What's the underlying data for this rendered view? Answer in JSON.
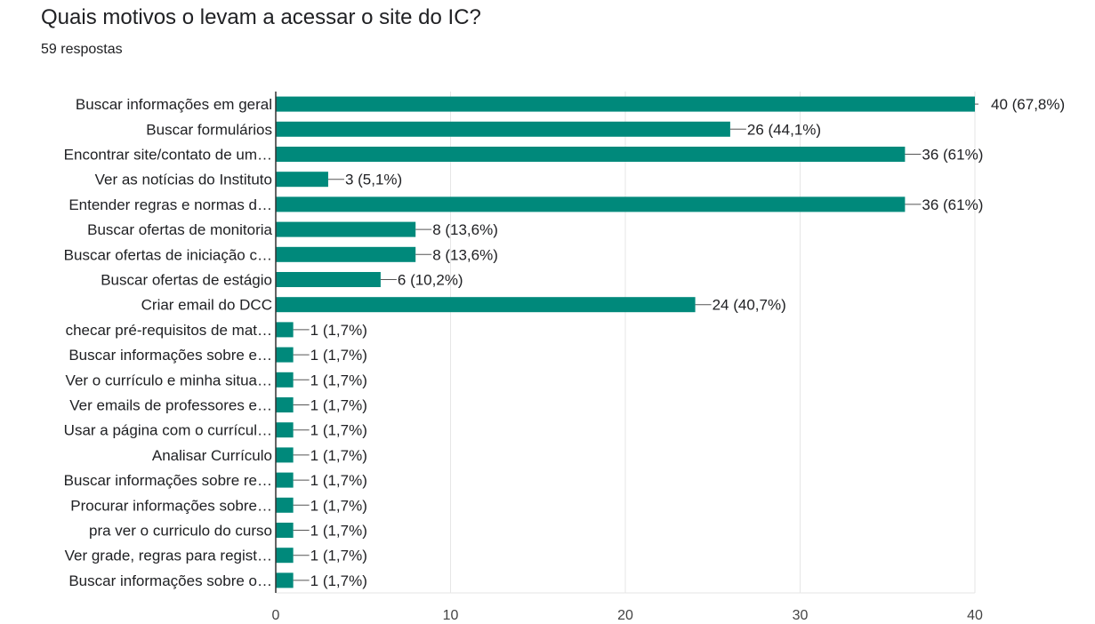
{
  "header": {
    "title": "Quais motivos o levam a acessar o site do IC?",
    "subtitle": "59 respostas"
  },
  "colors": {
    "bar": "#00897b",
    "grid": "#e6e6e6",
    "axis": "#333333",
    "leader": "#555555"
  },
  "chart_data": {
    "type": "bar",
    "orientation": "horizontal",
    "title": "Quais motivos o levam a acessar o site do IC?",
    "subtitle": "59 respostas",
    "xlim": [
      0,
      40
    ],
    "xticks": [
      0,
      10,
      20,
      30,
      40
    ],
    "grid": true,
    "categories": [
      "Buscar informações em geral",
      "Buscar formulários",
      "Encontrar site/contato de um…",
      "Ver as notícias do Instituto",
      "Entender regras e normas d…",
      "Buscar ofertas de monitoria",
      "Buscar ofertas de iniciação c…",
      "Buscar ofertas de estágio",
      "Criar email do DCC",
      "checar pré-requisitos de mat…",
      "Buscar informações sobre e…",
      "Ver o currículo e minha situa…",
      "Ver emails de professores e…",
      "Usar a página com o currícul…",
      "Analisar Currículo",
      "Buscar informações sobre re…",
      "Procurar informações sobre…",
      "pra ver o curriculo do curso",
      "Ver grade, regras para regist…",
      "Buscar informações sobre o…"
    ],
    "values": [
      40,
      26,
      36,
      3,
      36,
      8,
      8,
      6,
      24,
      1,
      1,
      1,
      1,
      1,
      1,
      1,
      1,
      1,
      1,
      1
    ],
    "data_labels": [
      "40 (67,8%)",
      "26 (44,1%)",
      "36 (61%)",
      "3 (5,1%)",
      "36 (61%)",
      "8 (13,6%)",
      "8 (13,6%)",
      "6 (10,2%)",
      "24 (40,7%)",
      "1 (1,7%)",
      "1 (1,7%)",
      "1 (1,7%)",
      "1 (1,7%)",
      "1 (1,7%)",
      "1 (1,7%)",
      "1 (1,7%)",
      "1 (1,7%)",
      "1 (1,7%)",
      "1 (1,7%)",
      "1 (1,7%)"
    ]
  }
}
